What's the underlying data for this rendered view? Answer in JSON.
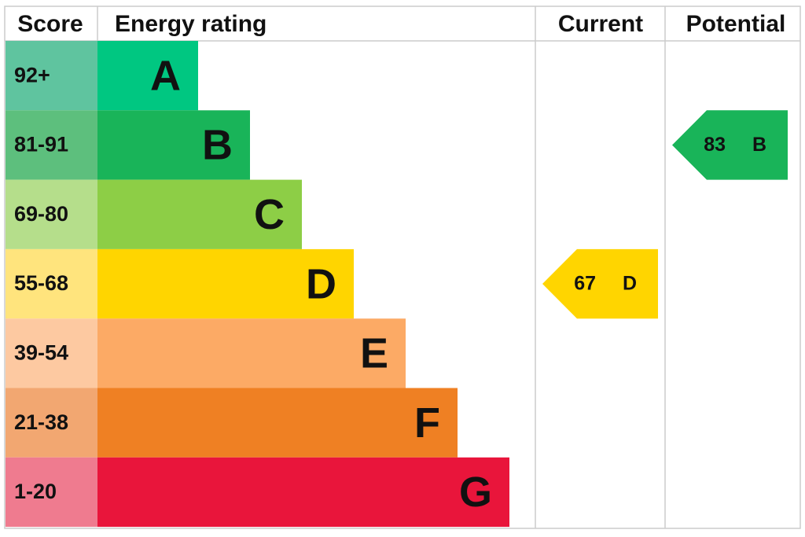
{
  "header": {
    "score": "Score",
    "rating": "Energy rating",
    "current": "Current",
    "potential": "Potential"
  },
  "bands": [
    {
      "score": "92+",
      "letter": "A",
      "color": "#00c781",
      "score_color": "#5fc49f"
    },
    {
      "score": "81-91",
      "letter": "B",
      "color": "#19b459",
      "score_color": "#5dbf7d"
    },
    {
      "score": "69-80",
      "letter": "C",
      "color": "#8dce46",
      "score_color": "#b5de8b"
    },
    {
      "score": "55-68",
      "letter": "D",
      "color": "#ffd500",
      "score_color": "#ffe47d"
    },
    {
      "score": "39-54",
      "letter": "E",
      "color": "#fcaa65",
      "score_color": "#fdc9a1"
    },
    {
      "score": "21-38",
      "letter": "F",
      "color": "#ef8023",
      "score_color": "#f2a771"
    },
    {
      "score": "1-20",
      "letter": "G",
      "color": "#e9153b",
      "score_color": "#ef7b8f"
    }
  ],
  "current": {
    "value": 67,
    "letter": "D"
  },
  "potential": {
    "value": 83,
    "letter": "B"
  }
}
